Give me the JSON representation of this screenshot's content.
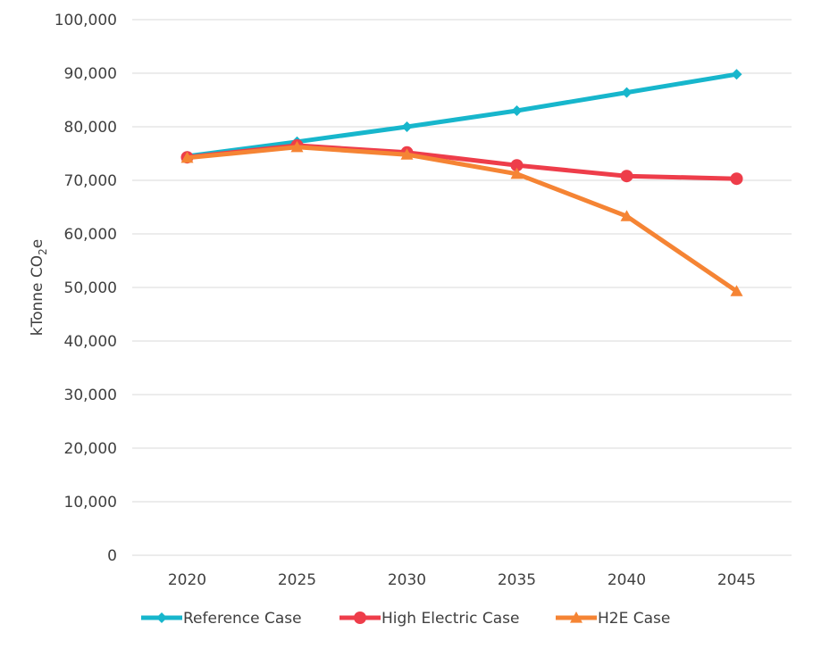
{
  "chart_data": {
    "type": "line",
    "title": "",
    "xlabel": "",
    "ylabel": {
      "prefix": "kTonne CO",
      "subscript": "2",
      "suffix": "e"
    },
    "categories": [
      "2020",
      "2025",
      "2030",
      "2035",
      "2040",
      "2045"
    ],
    "ylim": [
      0,
      100000
    ],
    "yticks": [
      0,
      10000,
      20000,
      30000,
      40000,
      50000,
      60000,
      70000,
      80000,
      90000,
      100000
    ],
    "ytick_labels": [
      "0",
      "10,000",
      "20,000",
      "30,000",
      "40,000",
      "50,000",
      "60,000",
      "70,000",
      "80,000",
      "90,000",
      "100,000"
    ],
    "grid": true,
    "legend": "bottom",
    "series": [
      {
        "name": "Reference Case",
        "color": "#17B6CC",
        "marker": "diamond",
        "values": [
          74500,
          77200,
          80000,
          83000,
          86400,
          89800
        ]
      },
      {
        "name": "High Electric Case",
        "color": "#EE3D4A",
        "marker": "circle",
        "values": [
          74300,
          76500,
          75200,
          72800,
          70800,
          70300
        ]
      },
      {
        "name": "H2E Case",
        "color": "#F58434",
        "marker": "triangle",
        "values": [
          74200,
          76200,
          74800,
          71200,
          63300,
          49300
        ]
      }
    ]
  }
}
